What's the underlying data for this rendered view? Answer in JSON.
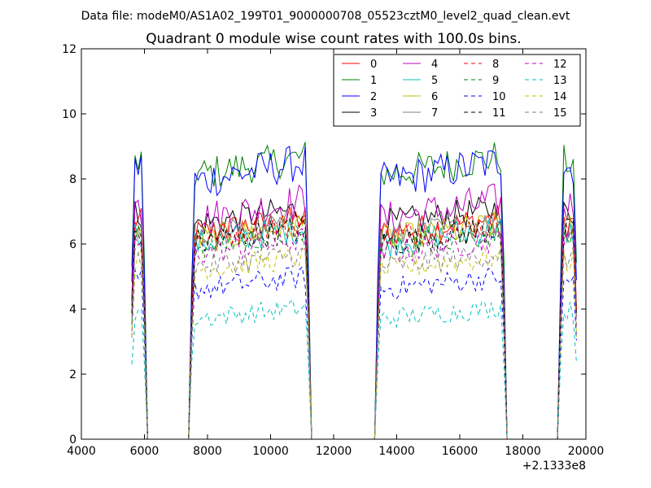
{
  "chart_data": {
    "type": "line",
    "suptitle": "Data file: modeM0/AS1A02_199T01_9000000708_05523cztM0_level2_quad_clean.evt",
    "title": "Quadrant 0 module wise count rates with 100.0s bins.",
    "xlabel": "",
    "ylabel": "",
    "x_offset_label": "+2.1333e8",
    "xlim": [
      4000,
      20000
    ],
    "ylim": [
      0,
      12
    ],
    "x_ticks": [
      "4000",
      "6000",
      "8000",
      "10000",
      "12000",
      "14000",
      "16000",
      "18000",
      "20000"
    ],
    "y_ticks": [
      "0",
      "2",
      "4",
      "6",
      "8",
      "10",
      "12"
    ],
    "grid": false,
    "legend_position": "top-right",
    "segments": [
      {
        "start": 5600,
        "end": 6000
      },
      {
        "start": 7500,
        "end": 11200
      },
      {
        "start": 13400,
        "end": 17400
      },
      {
        "start": 19200,
        "end": 19700
      }
    ],
    "series": [
      {
        "name": "0",
        "color": "#ff0000",
        "dash": "solid",
        "level": 6.3,
        "amp": 1.0
      },
      {
        "name": "1",
        "color": "#008000",
        "dash": "solid",
        "level": 8.1,
        "amp": 1.2
      },
      {
        "name": "2",
        "color": "#0000ff",
        "dash": "solid",
        "level": 7.9,
        "amp": 1.3
      },
      {
        "name": "3",
        "color": "#000000",
        "dash": "solid",
        "level": 6.6,
        "amp": 1.0
      },
      {
        "name": "4",
        "color": "#bf00bf",
        "dash": "solid",
        "level": 6.7,
        "amp": 1.3
      },
      {
        "name": "5",
        "color": "#00bfbf",
        "dash": "solid",
        "level": 6.0,
        "amp": 1.0
      },
      {
        "name": "6",
        "color": "#bfbf00",
        "dash": "solid",
        "level": 6.1,
        "amp": 1.0
      },
      {
        "name": "7",
        "color": "#808080",
        "dash": "solid",
        "level": 6.2,
        "amp": 1.0
      },
      {
        "name": "8",
        "color": "#ff0000",
        "dash": "dashed",
        "level": 6.2,
        "amp": 0.9
      },
      {
        "name": "9",
        "color": "#008000",
        "dash": "dashed",
        "level": 5.9,
        "amp": 0.9
      },
      {
        "name": "10",
        "color": "#0000ff",
        "dash": "dashed",
        "level": 4.6,
        "amp": 0.8
      },
      {
        "name": "11",
        "color": "#000000",
        "dash": "dashed",
        "level": 6.0,
        "amp": 1.0
      },
      {
        "name": "12",
        "color": "#bf00bf",
        "dash": "dashed",
        "level": 5.7,
        "amp": 0.9
      },
      {
        "name": "13",
        "color": "#00bfbf",
        "dash": "dashed",
        "level": 3.7,
        "amp": 0.7
      },
      {
        "name": "14",
        "color": "#bfbf00",
        "dash": "dashed",
        "level": 5.2,
        "amp": 0.8
      },
      {
        "name": "15",
        "color": "#808080",
        "dash": "dashed",
        "level": 5.3,
        "amp": 0.8
      }
    ]
  }
}
